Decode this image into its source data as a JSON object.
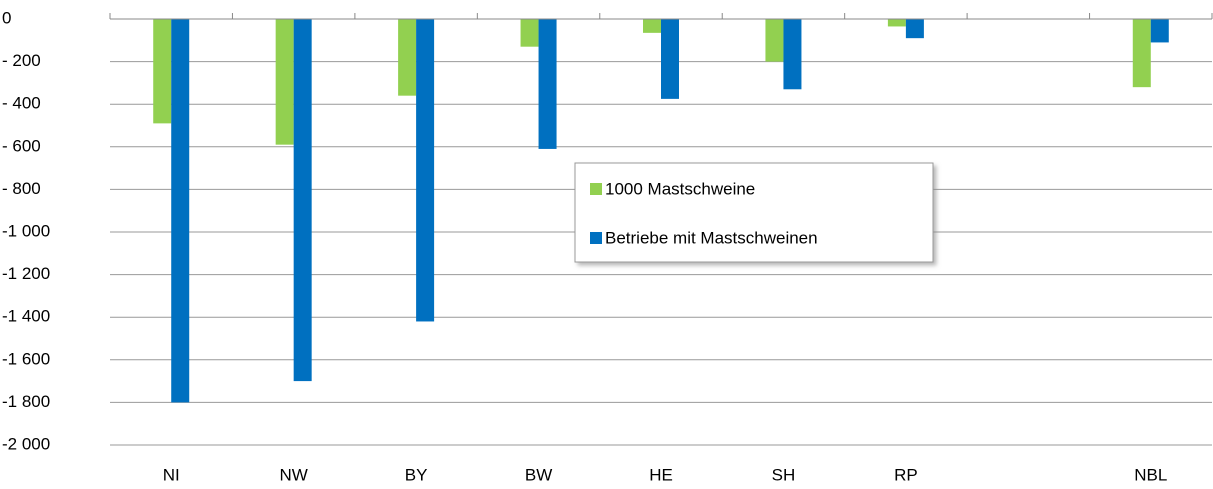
{
  "chart_data": {
    "type": "bar",
    "categories": [
      "NI",
      "NW",
      "BY",
      "BW",
      "HE",
      "SH",
      "RP",
      null,
      "NBL"
    ],
    "series": [
      {
        "name": "1000 Mastschweine",
        "color": "#92d050",
        "values": [
          -490,
          -590,
          -360,
          -130,
          -65,
          -200,
          -35,
          null,
          -320
        ]
      },
      {
        "name": "Betriebe mit Mastschweinen",
        "color": "#0070c0",
        "values": [
          -1800,
          -1700,
          -1420,
          -610,
          -375,
          -330,
          -90,
          null,
          -110
        ]
      }
    ],
    "ylim": [
      -2000,
      0
    ],
    "yticks": [
      0,
      {
        "value": -200,
        "label": "- 200"
      },
      {
        "value": -400,
        "label": "- 400"
      },
      {
        "value": -600,
        "label": "- 600"
      },
      {
        "value": -800,
        "label": "- 800"
      },
      {
        "value": -1000,
        "label": "-1 000"
      },
      {
        "value": -1200,
        "label": "-1 200"
      },
      {
        "value": -1400,
        "label": "-1 400"
      },
      {
        "value": -1600,
        "label": "-1 600"
      },
      {
        "value": -1800,
        "label": "-1 800"
      },
      {
        "value": -2000,
        "label": "-2 000"
      }
    ],
    "grid": true,
    "legend": "center"
  }
}
